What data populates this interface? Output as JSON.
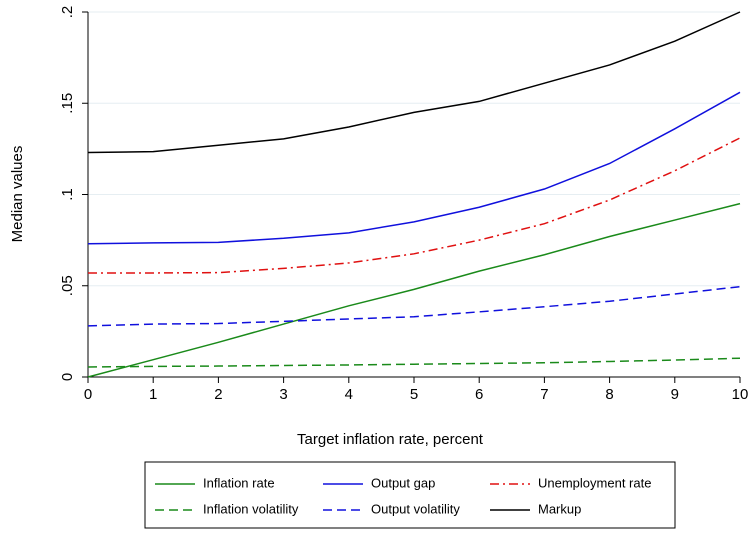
{
  "chart_data": {
    "type": "line",
    "xlabel": "Target inflation rate, percent",
    "ylabel": "Median values",
    "x": [
      0,
      1,
      2,
      3,
      4,
      5,
      6,
      7,
      8,
      9,
      10
    ],
    "xlim": [
      0,
      10
    ],
    "xticks": [
      0,
      1,
      2,
      3,
      4,
      5,
      6,
      7,
      8,
      9,
      10
    ],
    "ylim": [
      0,
      0.2
    ],
    "yticks": [
      0,
      {
        "value": 0.05,
        "label": ".05"
      },
      {
        "value": 0.1,
        "label": ".1"
      },
      {
        "value": 0.15,
        "label": ".15"
      },
      {
        "value": 0.2,
        "label": ".2"
      }
    ],
    "grid": true,
    "legend": "bottom",
    "series": [
      {
        "name": "Inflation rate",
        "color": "#1a8a1a",
        "dash": "solid",
        "values": [
          0,
          0.0095,
          0.019,
          0.029,
          0.039,
          0.048,
          0.058,
          0.067,
          0.077,
          0.086,
          0.095
        ]
      },
      {
        "name": "Output gap",
        "color": "#1010dd",
        "dash": "solid",
        "values": [
          0.073,
          0.0735,
          0.0738,
          0.076,
          0.079,
          0.085,
          0.093,
          0.103,
          0.117,
          0.136,
          0.156
        ]
      },
      {
        "name": "Unemployment rate",
        "color": "#e01010",
        "dash": "dashdot",
        "values": [
          0.057,
          0.057,
          0.0572,
          0.0595,
          0.0625,
          0.0675,
          0.075,
          0.084,
          0.097,
          0.113,
          0.131
        ]
      },
      {
        "name": "Inflation volatility",
        "color": "#1a8a1a",
        "dash": "dashed",
        "values": [
          0.0055,
          0.0058,
          0.006,
          0.0063,
          0.0066,
          0.007,
          0.0074,
          0.0078,
          0.0085,
          0.0093,
          0.0103
        ]
      },
      {
        "name": "Output volatility",
        "color": "#1010dd",
        "dash": "dashed",
        "values": [
          0.028,
          0.029,
          0.0293,
          0.0305,
          0.0318,
          0.033,
          0.0357,
          0.0385,
          0.0415,
          0.0455,
          0.0495
        ]
      },
      {
        "name": "Markup",
        "color": "#000000",
        "dash": "solid",
        "values": [
          0.123,
          0.1235,
          0.127,
          0.1305,
          0.137,
          0.145,
          0.151,
          0.161,
          0.171,
          0.184,
          0.2
        ]
      }
    ]
  }
}
